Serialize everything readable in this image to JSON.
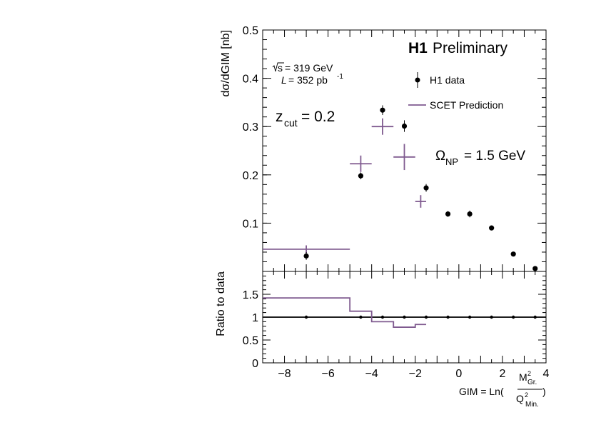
{
  "chart_data": [
    {
      "type": "scatter",
      "panel": "main",
      "experiment": "H1",
      "status": "Preliminary",
      "sqrt_s_label": "= 319 GeV",
      "lumi_label": "= 352 pb",
      "lumi_exp": "-1",
      "zcut_symbol": "z",
      "zcut_sub": "cut",
      "zcut_value": "= 0.2",
      "omega_symbol": "Ω",
      "omega_sub": "NP",
      "omega_value": "= 1.5 GeV",
      "ylabel": "dσ/dGIM [nb]",
      "xlim": [
        -9,
        4
      ],
      "ylim": [
        0,
        0.5
      ],
      "yticks": [
        0.1,
        0.2,
        0.3,
        0.4,
        0.5
      ],
      "ytick_labels": [
        "0.1",
        "0.2",
        "0.3",
        "0.4",
        "0.5"
      ],
      "legend": {
        "position": "top-right",
        "entries": [
          "H1 data",
          "SCET Prediction"
        ]
      },
      "series": [
        {
          "name": "H1 data",
          "color": "#000000",
          "points": [
            {
              "x": -7.0,
              "y": 0.032,
              "err": 0.008
            },
            {
              "x": -4.5,
              "y": 0.198,
              "err": 0.007
            },
            {
              "x": -3.5,
              "y": 0.334,
              "err": 0.01
            },
            {
              "x": -2.5,
              "y": 0.301,
              "err": 0.012
            },
            {
              "x": -1.5,
              "y": 0.173,
              "err": 0.008
            },
            {
              "x": -0.5,
              "y": 0.119,
              "err": 0.006
            },
            {
              "x": 0.5,
              "y": 0.119,
              "err": 0.007
            },
            {
              "x": 1.5,
              "y": 0.09,
              "err": 0.004
            },
            {
              "x": 2.5,
              "y": 0.036,
              "err": 0.003
            },
            {
              "x": 3.5,
              "y": 0.006,
              "err": 0.002
            }
          ]
        },
        {
          "name": "SCET Prediction",
          "color": "#7f5a8f",
          "points": [
            {
              "x": -7.0,
              "xlow": -9.0,
              "xhigh": -5.0,
              "y": 0.046,
              "err": 0.008
            },
            {
              "x": -4.5,
              "xlow": -5.0,
              "xhigh": -4.0,
              "y": 0.223,
              "err": 0.017
            },
            {
              "x": -3.5,
              "xlow": -4.0,
              "xhigh": -3.0,
              "y": 0.3,
              "err": 0.017
            },
            {
              "x": -2.5,
              "xlow": -3.0,
              "xhigh": -2.0,
              "y": 0.237,
              "err": 0.027
            },
            {
              "x": -1.75,
              "xlow": -2.0,
              "xhigh": -1.5,
              "y": 0.145,
              "err": 0.013
            }
          ]
        }
      ]
    },
    {
      "type": "line",
      "panel": "ratio",
      "ylabel": "Ratio to data",
      "xlabel_prefix": "GIM = Ln(",
      "xlabel_num": "M",
      "xlabel_num_sup": "2",
      "xlabel_num_sub": "Gr.",
      "xlabel_den": "Q",
      "xlabel_den_sup": "2",
      "xlabel_den_sub": "Min.",
      "xlabel_suffix": ")",
      "xlim": [
        -9,
        4
      ],
      "ylim": [
        0,
        2
      ],
      "xticks": [
        -8,
        -6,
        -4,
        -2,
        0,
        2,
        4
      ],
      "xtick_labels": [
        "−8",
        "−6",
        "−4",
        "−2",
        "0",
        "2",
        "4"
      ],
      "yticks": [
        0,
        0.5,
        1,
        1.5
      ],
      "ytick_labels": [
        "0",
        "0.5",
        "1",
        "1.5"
      ],
      "reference_line": 1,
      "data_points_x": [
        -7.0,
        -4.5,
        -3.5,
        -2.5,
        -1.5,
        -0.5,
        0.5,
        1.5,
        2.5,
        3.5
      ],
      "ratio_steps": [
        {
          "xlow": -9.0,
          "xhigh": -5.0,
          "y": 1.42
        },
        {
          "xlow": -5.0,
          "xhigh": -4.0,
          "y": 1.13
        },
        {
          "xlow": -4.0,
          "xhigh": -3.0,
          "y": 0.9
        },
        {
          "xlow": -3.0,
          "xhigh": -2.0,
          "y": 0.78
        },
        {
          "xlow": -2.0,
          "xhigh": -1.5,
          "y": 0.84
        }
      ],
      "color": "#7f5a8f"
    }
  ]
}
